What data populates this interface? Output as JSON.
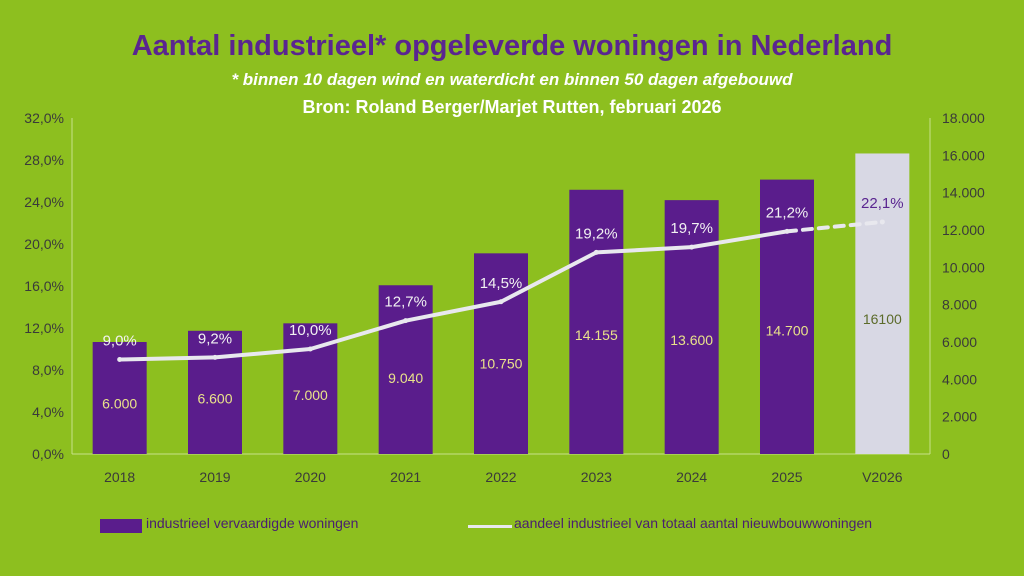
{
  "chart_data": {
    "type": "bar",
    "title": "Aantal industrieel* opgeleverde woningen in Nederland",
    "subtitle": "* binnen 10 dagen wind en waterdicht en binnen 50 dagen afgebouwd",
    "source": "Bron: Roland Berger/Marjet Rutten, februari 2026",
    "categories": [
      "2018",
      "2019",
      "2020",
      "2021",
      "2022",
      "2023",
      "2024",
      "2025",
      "V2026"
    ],
    "series": [
      {
        "name": "industrieel vervaardigde woningen",
        "type": "bar",
        "axis": "right",
        "values": [
          6000,
          6600,
          7000,
          9040,
          10750,
          14155,
          13600,
          14700,
          16100
        ],
        "labels": [
          "6.000",
          "6.600",
          "7.000",
          "9.040",
          "10.750",
          "14.155",
          "13.600",
          "14.700",
          "16100"
        ],
        "color": "#5a1d8c",
        "forecast_color": "#d8d8e4"
      },
      {
        "name": "aandeel industrieel van totaal aantal nieuwbouwwoningen",
        "type": "line",
        "axis": "left",
        "values": [
          9.0,
          9.2,
          10.0,
          12.7,
          14.5,
          19.2,
          19.7,
          21.2,
          22.1
        ],
        "labels": [
          "9,0%",
          "9,2%",
          "10,0%",
          "12,7%",
          "14,5%",
          "19,2%",
          "19,7%",
          "21,2%",
          "22,1%"
        ],
        "color": "#e8e8ee"
      }
    ],
    "y_left": {
      "min": 0,
      "max": 32,
      "ticks": [
        "0,0%",
        "4,0%",
        "8,0%",
        "12,0%",
        "16,0%",
        "20,0%",
        "24,0%",
        "28,0%",
        "32,0%"
      ]
    },
    "y_right": {
      "min": 0,
      "max": 18000,
      "ticks": [
        "0",
        "2.000",
        "4.000",
        "6.000",
        "8.000",
        "10.000",
        "12.000",
        "14.000",
        "16.000",
        "18.000"
      ]
    },
    "grid": false,
    "legend": [
      "industrieel vervaardigde woningen",
      "aandeel industrieel van totaal aantal nieuwbouwwoningen"
    ],
    "legend_position": "bottom"
  }
}
